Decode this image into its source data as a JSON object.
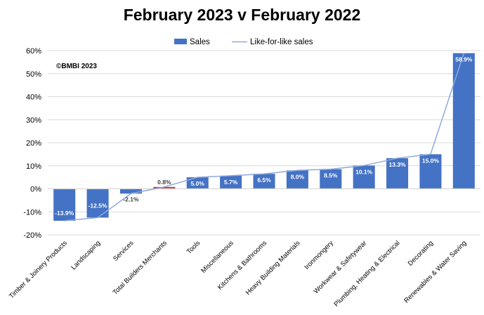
{
  "chart_data": {
    "type": "bar",
    "title": "February 2023 v February 2022",
    "annotation": "©BMBI 2023",
    "categories": [
      "Timber & Joinery Products",
      "Landscaping",
      "Services",
      "Total Builders Merchants",
      "Tools",
      "Miscellaneous",
      "Kitchens & Bathrooms",
      "Heavy Building Materials",
      "Ironmongery",
      "Workwear & Safetywear",
      "Plumbing, Heating & Electrical",
      "Decorating",
      "Renewables & Water Saving"
    ],
    "series": [
      {
        "name": "Sales",
        "type": "bar",
        "color": "#4472C4",
        "highlight_color": "#E0332E",
        "highlight_index": 3,
        "values": [
          -13.9,
          -12.5,
          -2.1,
          0.8,
          5.0,
          5.7,
          6.5,
          8.0,
          8.5,
          10.1,
          13.3,
          15.0,
          58.9
        ],
        "labels": [
          "-13.9%",
          "-12.5%",
          "-2.1%",
          "0.8%",
          "5.0%",
          "5.7%",
          "6.5%",
          "8.0%",
          "8.5%",
          "10.1%",
          "13.3%",
          "15.0%",
          "58.9%"
        ]
      },
      {
        "name": "Like-for-like sales",
        "type": "line",
        "color": "#8FAADC",
        "values": [
          -13.9,
          -12.5,
          -2.1,
          0.8,
          5.0,
          5.7,
          6.5,
          8.0,
          8.5,
          10.1,
          13.3,
          15.0,
          58.9
        ]
      }
    ],
    "yticks": [
      "60%",
      "50%",
      "40%",
      "30%",
      "20%",
      "10%",
      "0%",
      "-10%",
      "-20%"
    ],
    "ytick_values": [
      60,
      50,
      40,
      30,
      20,
      10,
      0,
      -10,
      -20
    ],
    "ylim": [
      -20,
      60
    ],
    "grid": true,
    "legend": "top-center"
  }
}
